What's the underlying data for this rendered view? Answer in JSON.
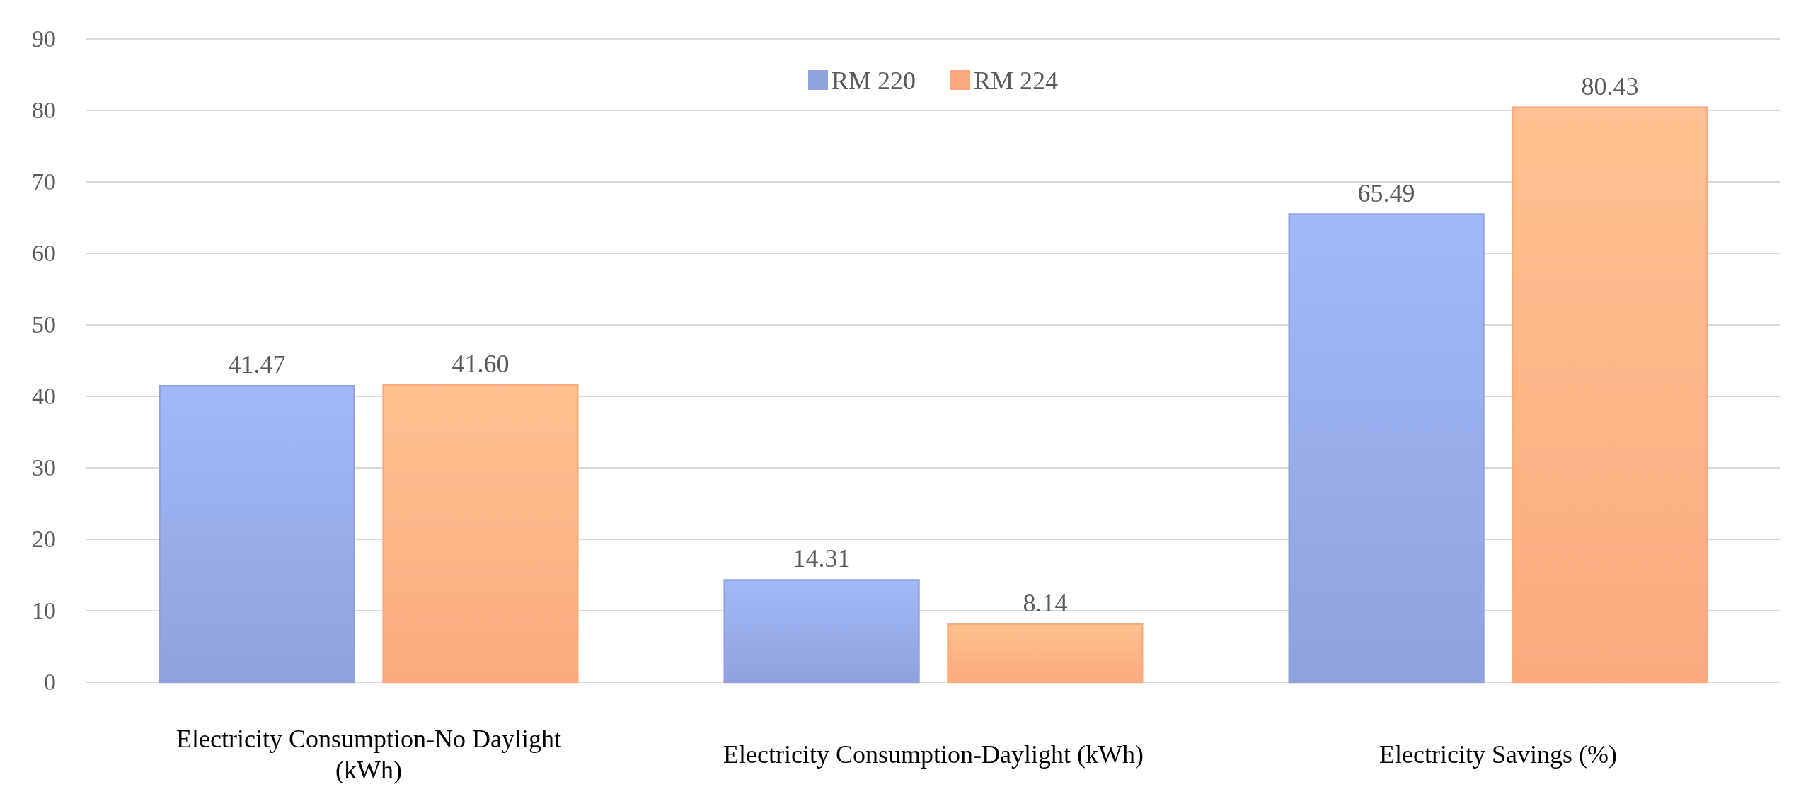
{
  "chart_data": {
    "type": "bar",
    "categories": [
      "Electricity Consumption-No Daylight (kWh)",
      "Electricity Consumption-Daylight (kWh)",
      "Electricity Savings (%)"
    ],
    "series": [
      {
        "name": "RM 220",
        "color": "#8fa2dc",
        "values": [
          41.47,
          14.31,
          65.49
        ]
      },
      {
        "name": "RM 224",
        "color": "#fbaa80",
        "values": [
          41.6,
          8.14,
          80.43
        ]
      }
    ],
    "value_labels": [
      [
        "41.47",
        "14.31",
        "65.49"
      ],
      [
        "41.60",
        "8.14",
        "80.43"
      ]
    ],
    "ylim": [
      0,
      90
    ],
    "yticks": [
      0,
      10,
      20,
      30,
      40,
      50,
      60,
      70,
      80,
      90
    ],
    "grid": "y",
    "legend": "top"
  }
}
